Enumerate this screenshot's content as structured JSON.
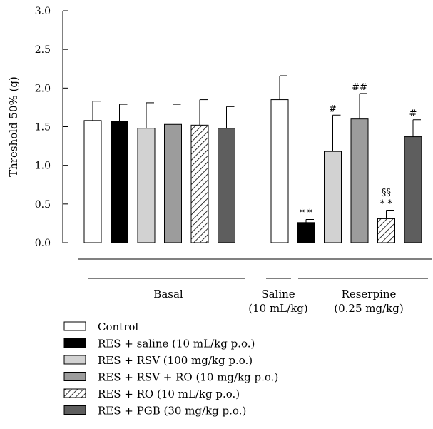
{
  "chart_data": {
    "type": "bar",
    "ylabel": "Threshold 50% (g)",
    "ylim": [
      0,
      3.0
    ],
    "yticks": [
      "0.0",
      "0.5",
      "1.0",
      "1.5",
      "2.0",
      "2.5",
      "3.0"
    ],
    "groups": [
      {
        "label": "Basal",
        "sublabel": ""
      },
      {
        "label": "Saline",
        "sublabel": "(10 mL/kg)"
      },
      {
        "label": "Reserpine",
        "sublabel": "(0.25 mg/kg)"
      }
    ],
    "legend": [
      {
        "label": "Control",
        "fill": "#ffffff",
        "hatch": false
      },
      {
        "label": "RES + saline (10 mL/kg p.o.)",
        "fill": "#000000",
        "hatch": false
      },
      {
        "label": "RES + RSV (100 mg/kg p.o.)",
        "fill": "#d2d2d2",
        "hatch": false
      },
      {
        "label": "RES + RSV + RO (10 mg/kg p.o.)",
        "fill": "#9c9c9c",
        "hatch": false
      },
      {
        "label": "RES + RO (10 mL/kg p.o.)",
        "fill": "#ffffff",
        "hatch": true
      },
      {
        "label": "RES + PGB (30 mg/kg p.o.)",
        "fill": "#5e5e5e",
        "hatch": false
      }
    ],
    "bars": [
      {
        "group": "Basal",
        "series": 0,
        "value": 1.58,
        "error": 0.25,
        "annotation": ""
      },
      {
        "group": "Basal",
        "series": 1,
        "value": 1.57,
        "error": 0.22,
        "annotation": ""
      },
      {
        "group": "Basal",
        "series": 2,
        "value": 1.48,
        "error": 0.33,
        "annotation": ""
      },
      {
        "group": "Basal",
        "series": 3,
        "value": 1.53,
        "error": 0.26,
        "annotation": ""
      },
      {
        "group": "Basal",
        "series": 4,
        "value": 1.52,
        "error": 0.33,
        "annotation": ""
      },
      {
        "group": "Basal",
        "series": 5,
        "value": 1.48,
        "error": 0.28,
        "annotation": ""
      },
      {
        "group": "Saline",
        "series": 0,
        "value": 1.85,
        "error": 0.31,
        "annotation": ""
      },
      {
        "group": "Reserpine",
        "series": 1,
        "value": 0.26,
        "error": 0.04,
        "annotation": "* *"
      },
      {
        "group": "Reserpine",
        "series": 2,
        "value": 1.18,
        "error": 0.47,
        "annotation": "#"
      },
      {
        "group": "Reserpine",
        "series": 3,
        "value": 1.6,
        "error": 0.33,
        "annotation": "##"
      },
      {
        "group": "Reserpine",
        "series": 4,
        "value": 0.31,
        "error": 0.11,
        "annotation": "* *",
        "annotation2": "§§"
      },
      {
        "group": "Reserpine",
        "series": 5,
        "value": 1.37,
        "error": 0.22,
        "annotation": "#"
      }
    ]
  }
}
